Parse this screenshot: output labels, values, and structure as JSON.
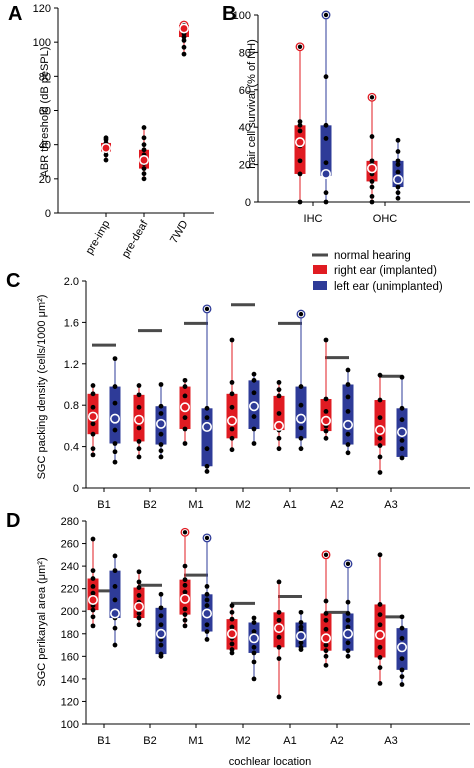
{
  "colors": {
    "right": "#e01b22",
    "left": "#2e3b98",
    "nh": "#4a4a4a",
    "median_ring": "#ffffff",
    "outlier_right": "#e01b22",
    "outlier_left": "#2e3b98",
    "point": "#000000"
  },
  "chart_data": [
    {
      "panel_letter": "A",
      "type": "box",
      "title": "",
      "ylabel": "ABR threshold (dB peSPL)",
      "xlabel": "",
      "ylim": [
        0,
        120
      ],
      "yticks": [
        0,
        20,
        40,
        60,
        80,
        100,
        120
      ],
      "categories": [
        "pre-imp",
        "pre-deaf",
        "7WD"
      ],
      "series": [
        {
          "color": "right",
          "boxes": [
            {
              "q1": 36,
              "median": 38,
              "q3": 41,
              "min": 31,
              "max": 44,
              "points": [
                31,
                34,
                36,
                38,
                40,
                41,
                43,
                44
              ],
              "outlier": null
            },
            {
              "q1": 26,
              "median": 31,
              "q3": 37,
              "min": 20,
              "max": 50,
              "points": [
                20,
                23,
                26,
                29,
                31,
                34,
                37,
                40,
                44,
                50
              ],
              "outlier": null
            },
            {
              "q1": 103,
              "median": 108,
              "q3": 110,
              "min": 93,
              "max": 110,
              "points": [
                93,
                97,
                101,
                103,
                105,
                108,
                110
              ],
              "outlier": 110
            }
          ]
        }
      ]
    },
    {
      "panel_letter": "B",
      "type": "box",
      "title": "",
      "ylabel": "hair cell survival (% of NH)",
      "xlabel": "",
      "ylim": [
        0,
        100
      ],
      "yticks": [
        0,
        20,
        40,
        60,
        80,
        100
      ],
      "categories": [
        "IHC",
        "OHC"
      ],
      "series": [
        {
          "name": "right ear (implanted)",
          "color": "right",
          "boxes": [
            {
              "q1": 15,
              "median": 32,
              "q3": 41,
              "min": 0,
              "max": 83,
              "points": [
                0,
                15,
                22,
                30,
                32,
                38,
                41,
                43
              ],
              "outlier": 83
            },
            {
              "q1": 11,
              "median": 18,
              "q3": 22,
              "min": 0,
              "max": 56,
              "points": [
                0,
                3,
                8,
                11,
                15,
                18,
                20,
                22,
                35
              ],
              "outlier": 56
            }
          ]
        },
        {
          "name": "left ear (unimplanted)",
          "color": "left",
          "boxes": [
            {
              "q1": 14,
              "median": 15,
              "q3": 41,
              "min": 0,
              "max": 100,
              "points": [
                0,
                5,
                14,
                15,
                21,
                34,
                41,
                67
              ],
              "outlier": 100
            },
            {
              "q1": 8,
              "median": 12,
              "q3": 22,
              "min": 2,
              "max": 33,
              "points": [
                2,
                5,
                8,
                12,
                16,
                20,
                22,
                27,
                33
              ],
              "outlier": null
            }
          ]
        }
      ]
    },
    {
      "panel_letter": "C",
      "type": "box",
      "title": "",
      "ylabel": "SGC packing density (cells/1000 μm²)",
      "xlabel": "",
      "ylim": [
        0,
        2.0
      ],
      "yticks": [
        0,
        0.4,
        0.8,
        1.2,
        1.6,
        2.0
      ],
      "ytick_labels": [
        "0",
        "0.4",
        "0.8",
        "1.2",
        "1.6",
        "2.0"
      ],
      "categories": [
        "B1",
        "B2",
        "M1",
        "M2",
        "A1",
        "A2",
        "A3"
      ],
      "normal_hearing": [
        1.38,
        1.52,
        1.59,
        1.77,
        1.59,
        1.26,
        1.08
      ],
      "series": [
        {
          "name": "right ear (implanted)",
          "color": "right",
          "boxes": [
            {
              "q1": 0.52,
              "median": 0.69,
              "q3": 0.91,
              "min": 0.32,
              "max": 0.99,
              "points": [
                0.32,
                0.38,
                0.52,
                0.62,
                0.69,
                0.78,
                0.91,
                0.99
              ],
              "outlier": null
            },
            {
              "q1": 0.45,
              "median": 0.66,
              "q3": 0.9,
              "min": 0.3,
              "max": 0.99,
              "points": [
                0.3,
                0.38,
                0.45,
                0.58,
                0.66,
                0.78,
                0.9,
                0.99
              ],
              "outlier": null
            },
            {
              "q1": 0.57,
              "median": 0.78,
              "q3": 0.98,
              "min": 0.43,
              "max": 1.04,
              "points": [
                0.43,
                0.57,
                0.68,
                0.78,
                0.89,
                0.98,
                1.04
              ],
              "outlier": null
            },
            {
              "q1": 0.48,
              "median": 0.65,
              "q3": 0.91,
              "min": 0.37,
              "max": 1.43,
              "points": [
                0.37,
                0.48,
                0.57,
                0.65,
                0.78,
                0.91,
                1.02,
                1.43
              ],
              "outlier": null
            },
            {
              "q1": 0.56,
              "median": 0.6,
              "q3": 0.89,
              "min": 0.38,
              "max": 1.02,
              "points": [
                0.38,
                0.48,
                0.56,
                0.6,
                0.72,
                0.89,
                0.95,
                1.02
              ],
              "outlier": null
            },
            {
              "q1": 0.55,
              "median": 0.65,
              "q3": 0.86,
              "min": 0.48,
              "max": 1.43,
              "points": [
                0.48,
                0.55,
                0.6,
                0.65,
                0.74,
                0.86,
                1.43
              ],
              "outlier": null
            },
            {
              "q1": 0.41,
              "median": 0.56,
              "q3": 0.85,
              "min": 0.15,
              "max": 1.09,
              "points": [
                0.15,
                0.3,
                0.41,
                0.48,
                0.56,
                0.68,
                0.85,
                1.09
              ],
              "outlier": null
            }
          ]
        },
        {
          "name": "left ear (unimplanted)",
          "color": "left",
          "boxes": [
            {
              "q1": 0.43,
              "median": 0.67,
              "q3": 0.98,
              "min": 0.25,
              "max": 1.25,
              "points": [
                0.25,
                0.35,
                0.43,
                0.56,
                0.67,
                0.82,
                0.98,
                1.25
              ],
              "outlier": null
            },
            {
              "q1": 0.42,
              "median": 0.62,
              "q3": 0.79,
              "min": 0.3,
              "max": 1.0,
              "points": [
                0.3,
                0.36,
                0.42,
                0.52,
                0.62,
                0.72,
                0.79,
                1.0
              ],
              "outlier": null
            },
            {
              "q1": 0.21,
              "median": 0.59,
              "q3": 0.77,
              "min": 0.16,
              "max": 1.73,
              "points": [
                0.16,
                0.21,
                0.38,
                0.59,
                0.68,
                0.77
              ],
              "outlier": 1.73
            },
            {
              "q1": 0.57,
              "median": 0.79,
              "q3": 1.04,
              "min": 0.43,
              "max": 1.1,
              "points": [
                0.43,
                0.57,
                0.69,
                0.79,
                0.92,
                1.04,
                1.1
              ],
              "outlier": null
            },
            {
              "q1": 0.48,
              "median": 0.67,
              "q3": 0.98,
              "min": 0.38,
              "max": 1.68,
              "points": [
                0.38,
                0.48,
                0.58,
                0.67,
                0.8,
                0.98
              ],
              "outlier": 1.68
            },
            {
              "q1": 0.42,
              "median": 0.61,
              "q3": 1.0,
              "min": 0.34,
              "max": 1.14,
              "points": [
                0.34,
                0.42,
                0.52,
                0.61,
                0.74,
                0.88,
                1.0,
                1.14
              ],
              "outlier": null
            },
            {
              "q1": 0.3,
              "median": 0.54,
              "q3": 0.77,
              "min": 0.29,
              "max": 1.07,
              "points": [
                0.29,
                0.38,
                0.46,
                0.54,
                0.66,
                0.77,
                1.07
              ],
              "outlier": null
            }
          ]
        }
      ]
    },
    {
      "panel_letter": "D",
      "type": "box",
      "title": "",
      "ylabel": "SGC perikaryal area (μm²)",
      "xlabel": "cochlear location",
      "ylim": [
        100,
        280
      ],
      "yticks": [
        100,
        120,
        140,
        160,
        180,
        200,
        220,
        240,
        260,
        280
      ],
      "categories": [
        "B1",
        "B2",
        "M1",
        "M2",
        "A1",
        "A2",
        "A3"
      ],
      "normal_hearing": [
        218,
        223,
        232,
        207,
        213,
        199,
        195
      ],
      "series": [
        {
          "name": "right ear (implanted)",
          "color": "right",
          "boxes": [
            {
              "q1": 201,
              "median": 210,
              "q3": 229,
              "min": 187,
              "max": 264,
              "points": [
                187,
                195,
                201,
                205,
                210,
                216,
                222,
                229,
                236,
                264
              ],
              "outlier": null
            },
            {
              "q1": 194,
              "median": 204,
              "q3": 221,
              "min": 188,
              "max": 235,
              "points": [
                188,
                194,
                198,
                204,
                208,
                214,
                221,
                226,
                235
              ],
              "outlier": null
            },
            {
              "q1": 197,
              "median": 211,
              "q3": 228,
              "min": 187,
              "max": 270,
              "points": [
                187,
                192,
                197,
                202,
                211,
                217,
                223,
                228,
                240
              ],
              "outlier": 270
            },
            {
              "q1": 166,
              "median": 180,
              "q3": 193,
              "min": 163,
              "max": 205,
              "points": [
                163,
                166,
                171,
                176,
                180,
                186,
                193,
                199,
                205
              ],
              "outlier": null
            },
            {
              "q1": 168,
              "median": 185,
              "q3": 199,
              "min": 124,
              "max": 226,
              "points": [
                124,
                158,
                168,
                177,
                185,
                192,
                199,
                226
              ],
              "outlier": null
            },
            {
              "q1": 165,
              "median": 176,
              "q3": 198,
              "min": 152,
              "max": 250,
              "points": [
                152,
                160,
                165,
                170,
                176,
                184,
                192,
                198,
                209
              ],
              "outlier": 250
            },
            {
              "q1": 159,
              "median": 179,
              "q3": 206,
              "min": 136,
              "max": 250,
              "points": [
                136,
                150,
                159,
                168,
                179,
                188,
                197,
                206,
                250
              ],
              "outlier": null
            }
          ]
        },
        {
          "name": "left ear (unimplanted)",
          "color": "left",
          "boxes": [
            {
              "q1": 194,
              "median": 198,
              "q3": 236,
              "min": 170,
              "max": 249,
              "points": [
                170,
                185,
                194,
                198,
                210,
                222,
                236,
                249
              ],
              "outlier": null
            },
            {
              "q1": 162,
              "median": 180,
              "q3": 203,
              "min": 160,
              "max": 215,
              "points": [
                160,
                162,
                170,
                175,
                180,
                188,
                196,
                203,
                215
              ],
              "outlier": null
            },
            {
              "q1": 182,
              "median": 198,
              "q3": 215,
              "min": 175,
              "max": 265,
              "points": [
                175,
                182,
                188,
                198,
                205,
                210,
                215,
                222
              ],
              "outlier": 265
            },
            {
              "q1": 163,
              "median": 176,
              "q3": 190,
              "min": 140,
              "max": 194,
              "points": [
                140,
                155,
                163,
                168,
                176,
                182,
                190,
                194
              ],
              "outlier": null
            },
            {
              "q1": 168,
              "median": 178,
              "q3": 190,
              "min": 166,
              "max": 199,
              "points": [
                166,
                168,
                172,
                178,
                183,
                186,
                190,
                199
              ],
              "outlier": null
            },
            {
              "q1": 165,
              "median": 180,
              "q3": 198,
              "min": 160,
              "max": 242,
              "points": [
                160,
                165,
                172,
                180,
                186,
                192,
                198,
                208
              ],
              "outlier": 242
            },
            {
              "q1": 148,
              "median": 168,
              "q3": 185,
              "min": 135,
              "max": 195,
              "points": [
                135,
                142,
                148,
                158,
                168,
                176,
                185,
                195
              ],
              "outlier": null
            }
          ]
        }
      ]
    }
  ],
  "legend": {
    "entries": [
      {
        "label": "normal hearing",
        "color": "nh",
        "kind": "line"
      },
      {
        "label": "right ear (implanted)",
        "color": "right",
        "kind": "box"
      },
      {
        "label": "left ear (unimplanted)",
        "color": "left",
        "kind": "box"
      }
    ]
  }
}
